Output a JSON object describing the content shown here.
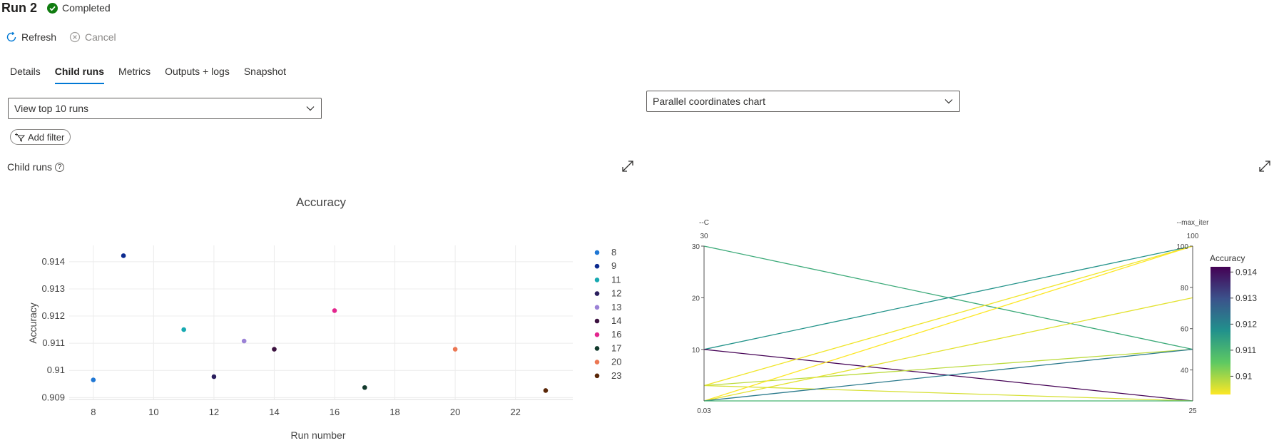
{
  "header": {
    "title": "Run 2",
    "status": {
      "label": "Completed",
      "icon": "check-circle-icon",
      "color": "#107c10"
    }
  },
  "toolbar": {
    "refresh_label": "Refresh",
    "cancel_label": "Cancel"
  },
  "tabs": [
    {
      "label": "Details",
      "active": false
    },
    {
      "label": "Child runs",
      "active": true
    },
    {
      "label": "Metrics",
      "active": false
    },
    {
      "label": "Outputs + logs",
      "active": false
    },
    {
      "label": "Snapshot",
      "active": false
    }
  ],
  "left_panel": {
    "view_dropdown": "View top 10 runs",
    "add_filter_label": "Add filter",
    "section_label": "Child runs"
  },
  "right_panel": {
    "chart_dropdown": "Parallel coordinates chart"
  },
  "colors": {
    "accent": "#0078d4"
  },
  "chart_data": [
    {
      "type": "scatter",
      "title": "Accuracy",
      "xlabel": "Run number",
      "ylabel": "Accuracy",
      "xlim": [
        7.2,
        23.9
      ],
      "ylim": [
        0.90893,
        0.9146
      ],
      "xticks": [
        8,
        10,
        12,
        14,
        16,
        18,
        20,
        22
      ],
      "yticks": [
        0.909,
        0.91,
        0.911,
        0.912,
        0.913,
        0.914
      ],
      "ytick_labels": [
        "0.909",
        "0.91",
        "0.911",
        "0.912",
        "0.913",
        "0.914"
      ],
      "legend_position": "right",
      "series": [
        {
          "name": "8",
          "x": 8,
          "y": 0.90965,
          "color": "#1f77d4"
        },
        {
          "name": "9",
          "x": 9,
          "y": 0.91422,
          "color": "#0c2a8f"
        },
        {
          "name": "11",
          "x": 11,
          "y": 0.9115,
          "color": "#17a9b1"
        },
        {
          "name": "12",
          "x": 12,
          "y": 0.90977,
          "color": "#2b1f5e"
        },
        {
          "name": "13",
          "x": 13,
          "y": 0.91108,
          "color": "#9b82d6"
        },
        {
          "name": "14",
          "x": 14,
          "y": 0.91078,
          "color": "#3c1240"
        },
        {
          "name": "16",
          "x": 16,
          "y": 0.9122,
          "color": "#e3268e"
        },
        {
          "name": "17",
          "x": 17,
          "y": 0.90937,
          "color": "#123a2c"
        },
        {
          "name": "20",
          "x": 20,
          "y": 0.91078,
          "color": "#ec7753"
        },
        {
          "name": "23",
          "x": 23,
          "y": 0.90926,
          "color": "#5a2708"
        }
      ]
    },
    {
      "type": "parallel_coordinates",
      "axes": [
        {
          "name": "--C",
          "top_label": "30",
          "bottom_label": "0.03",
          "range": [
            0.03,
            30
          ],
          "ticks": [
            10,
            20,
            30
          ]
        },
        {
          "name": "--max_iter",
          "top_label": "100",
          "bottom_label": "25",
          "range": [
            25,
            100
          ],
          "ticks": [
            40,
            60,
            80,
            100
          ]
        }
      ],
      "colorbar": {
        "title": "Accuracy",
        "range": [
          0.9093,
          0.9142
        ],
        "ticks": [
          "0.914",
          "0.913",
          "0.912",
          "0.911",
          "0.91"
        ]
      },
      "lines": [
        {
          "C": 30,
          "max_iter": 50,
          "accuracy": 0.9112
        },
        {
          "C": 10,
          "max_iter": 100,
          "accuracy": 0.9117
        },
        {
          "C": 10,
          "max_iter": 25,
          "accuracy": 0.9142
        },
        {
          "C": 3,
          "max_iter": 100,
          "accuracy": 0.9094
        },
        {
          "C": 3,
          "max_iter": 50,
          "accuracy": 0.9098
        },
        {
          "C": 3,
          "max_iter": 25,
          "accuracy": 0.9096
        },
        {
          "C": 0.03,
          "max_iter": 100,
          "accuracy": 0.9093
        },
        {
          "C": 0.03,
          "max_iter": 75,
          "accuracy": 0.9095
        },
        {
          "C": 0.03,
          "max_iter": 50,
          "accuracy": 0.9122
        },
        {
          "C": 0.03,
          "max_iter": 25,
          "accuracy": 0.911
        }
      ]
    }
  ]
}
